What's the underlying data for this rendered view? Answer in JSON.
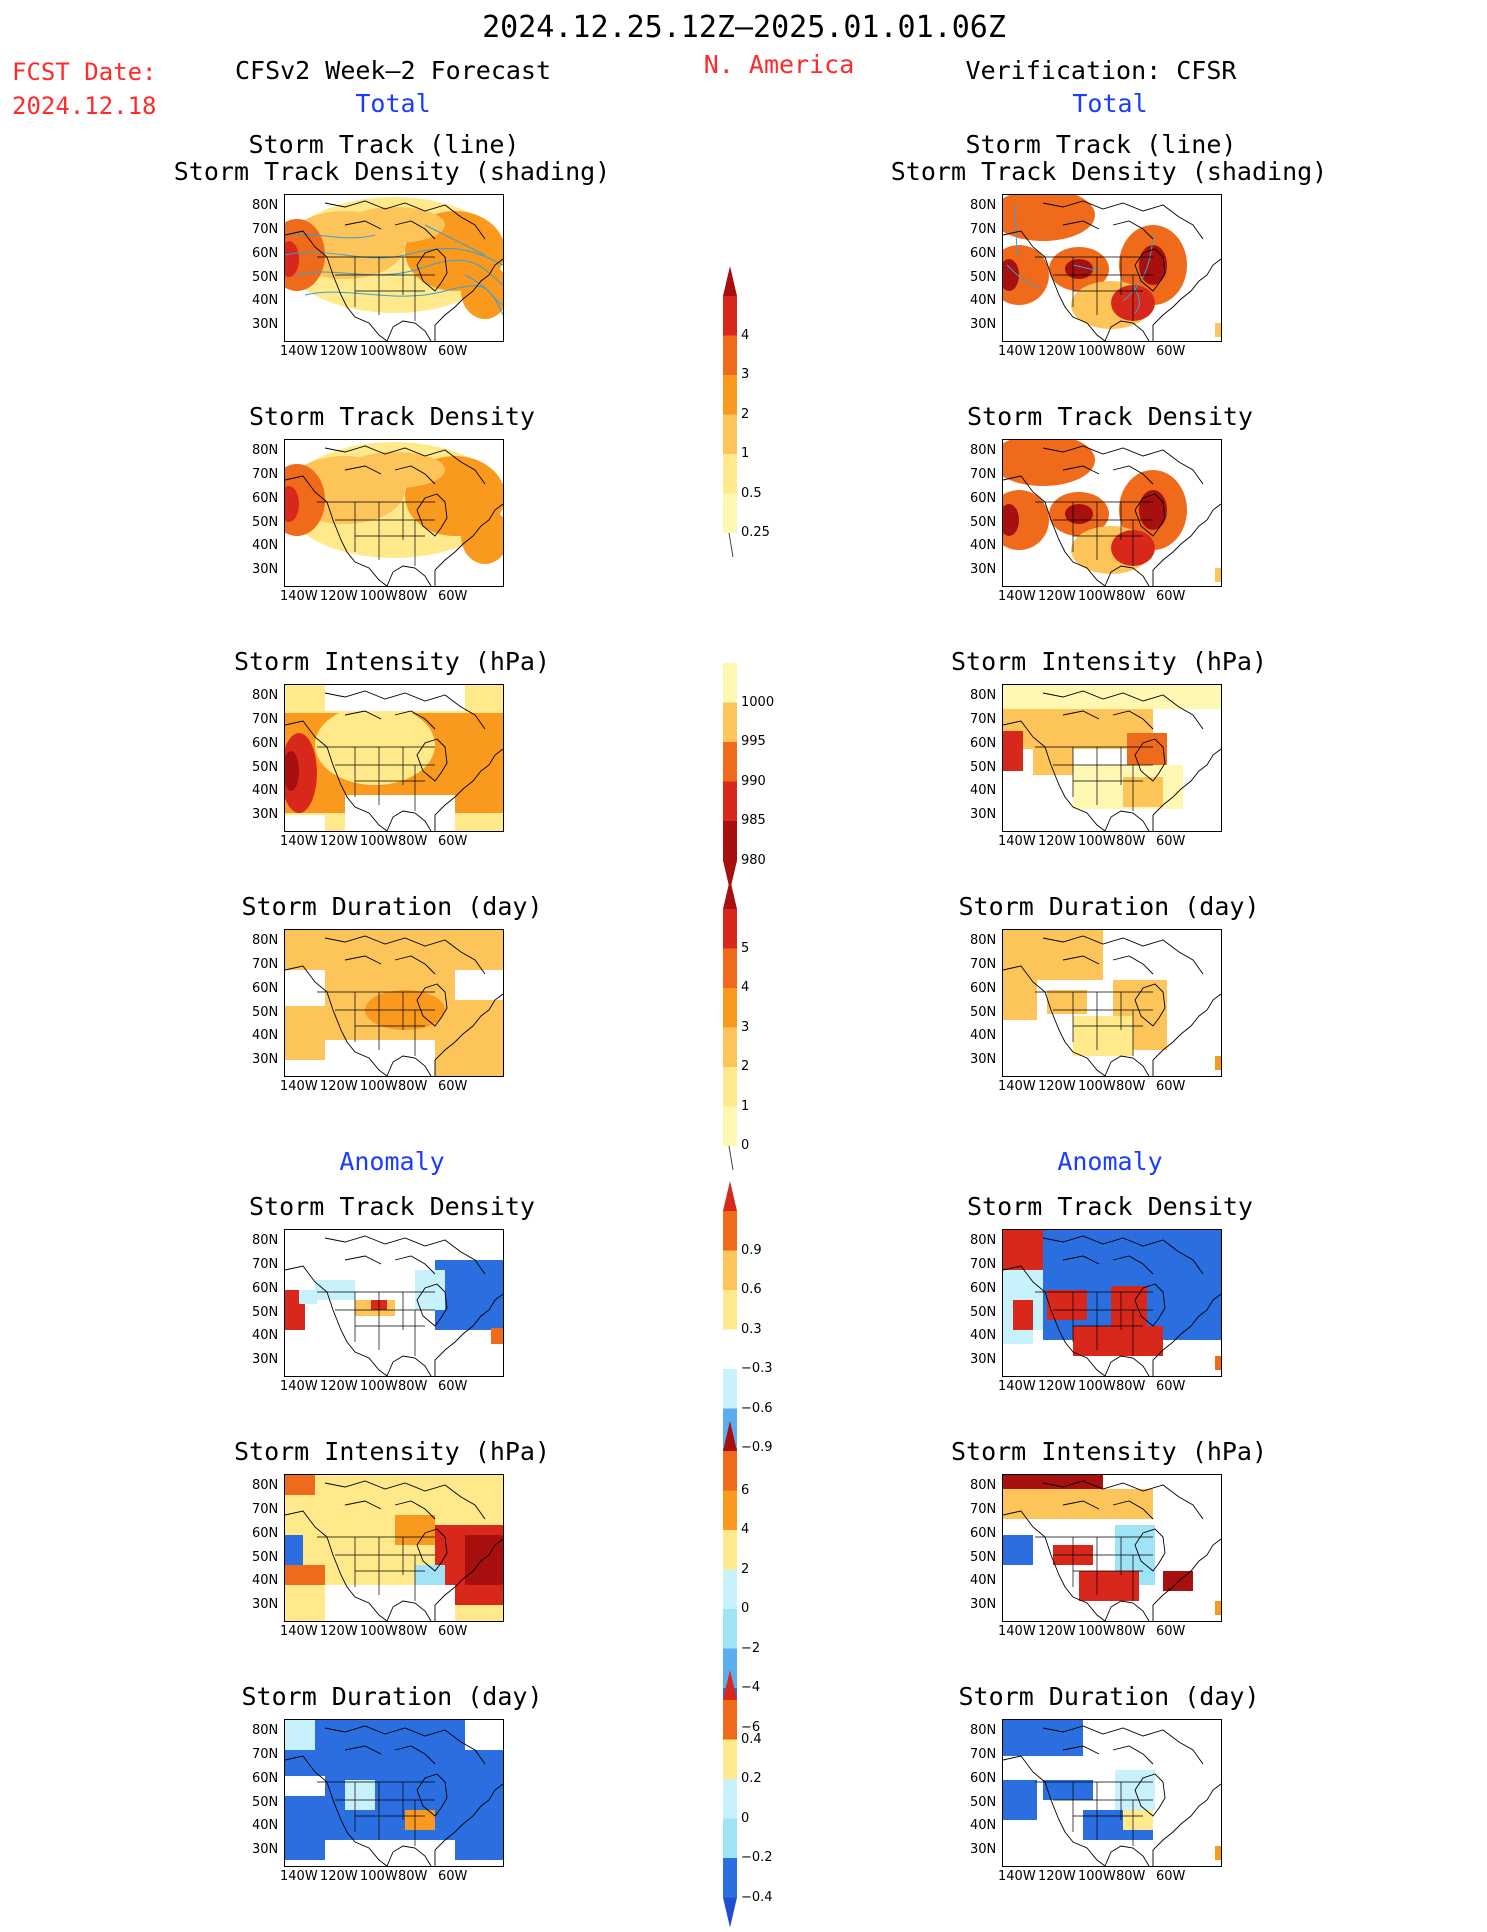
{
  "header": {
    "title": "2024.12.25.12Z–2025.01.01.06Z",
    "fcst_label": "FCST Date:",
    "fcst_date": "2024.12.18",
    "forecast_title": "CFSv2 Week–2 Forecast",
    "region": "N. America",
    "verification_title": "Verification: CFSR"
  },
  "sections": {
    "total": "Total",
    "anomaly": "Anomaly"
  },
  "panel_titles": {
    "track_line": "Storm Track (line)",
    "track_density_shading": "Storm Track Density (shading)",
    "track_density": "Storm Track Density",
    "intensity": "Storm Intensity (hPa)",
    "duration": "Storm Duration (day)"
  },
  "axes": {
    "lat_labels": [
      "80N",
      "70N",
      "60N",
      "50N",
      "40N",
      "30N"
    ],
    "lon_labels": [
      "140W",
      "120W",
      "100W",
      "80W",
      "60W"
    ]
  },
  "colorbars": {
    "density_total": [
      "4",
      "3",
      "2",
      "1",
      "0.5",
      "0.25"
    ],
    "intensity_total": [
      "1000",
      "995",
      "990",
      "985",
      "980"
    ],
    "duration_total": [
      "5",
      "4",
      "3",
      "2",
      "1",
      "0"
    ],
    "density_anom": [
      "0.9",
      "0.6",
      "0.3",
      "−0.3",
      "−0.6",
      "−0.9"
    ],
    "intensity_anom": [
      "6",
      "4",
      "2",
      "0",
      "−2",
      "−4",
      "−6"
    ],
    "duration_anom": [
      "0.4",
      "0.2",
      "0",
      "−0.2",
      "−0.4"
    ]
  },
  "colors": {
    "title_red": "#ff2a2a",
    "section_blue": "#1a3cff",
    "warm_scale": [
      "#fff8b3",
      "#ffe98a",
      "#fdc45a",
      "#f99a1e",
      "#ef6a1a",
      "#d8281c",
      "#a80f0f"
    ],
    "cool_scale": [
      "#c8f2fb",
      "#9fe3f7",
      "#5aaef0",
      "#2a6ee0",
      "#1e4fd0"
    ],
    "track_line": "#3aa0d0"
  }
}
